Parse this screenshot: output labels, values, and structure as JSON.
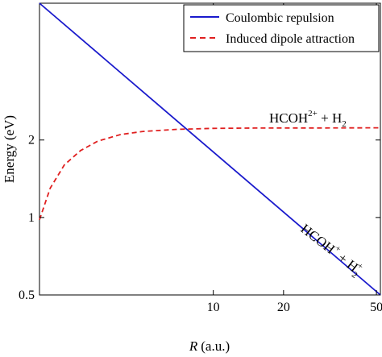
{
  "chart_data": {
    "type": "line",
    "xlabel_var": "R",
    "xlabel_unit": "(a.u.)",
    "ylabel": "Energy (eV)",
    "x_scale": "log",
    "y_scale": "log",
    "xlim": [
      1.8,
      52
    ],
    "ylim": [
      0.5,
      6.8
    ],
    "x_ticks": [
      10,
      20,
      50
    ],
    "y_ticks": [
      0.5,
      1,
      2
    ],
    "grid": false,
    "legend_position": "top-right",
    "series": [
      {
        "name": "Coulombic repulsion",
        "color": "#1a1acc",
        "style": "solid",
        "x": [
          1.8,
          52
        ],
        "y": [
          6.8,
          0.5
        ]
      },
      {
        "name": "Induced dipole attraction",
        "color": "#e02020",
        "style": "dashed",
        "x": [
          1.8,
          2.0,
          2.3,
          2.7,
          3.2,
          4.0,
          5.0,
          7.0,
          10.0,
          15.0,
          20.0,
          30.0,
          52.0
        ],
        "y": [
          0.98,
          1.3,
          1.6,
          1.82,
          1.98,
          2.1,
          2.16,
          2.2,
          2.22,
          2.225,
          2.227,
          2.228,
          2.23
        ]
      }
    ],
    "annotations": {
      "upper": {
        "base": "HCOH",
        "sup": "2+",
        "mid": " + H",
        "sub": "2"
      },
      "lower": {
        "base": "HCOH",
        "sup": "+",
        "mid": " + H",
        "sub": "2",
        "sub_sup": "+"
      }
    }
  }
}
